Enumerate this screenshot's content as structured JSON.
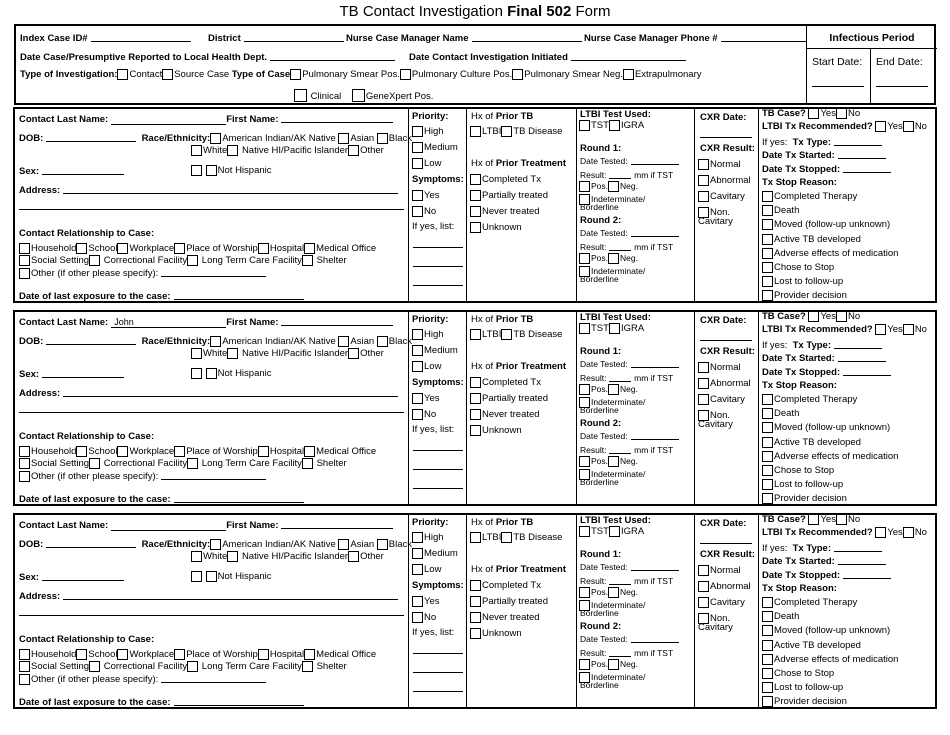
{
  "title": {
    "pre": "TB Contact Investigation ",
    "bold": "Final 502",
    "post": " Form"
  },
  "header": {
    "index_case": "Index Case ID#",
    "district": "District",
    "ncm_name": "Nurse Case Manager Name",
    "ncm_phone": "Nurse Case Manager Phone #",
    "date_reported": "Date Case/Presumptive Reported to Local Health Dept.",
    "date_initiated": "Date Contact Investigation Initiated",
    "type_inv": "Type of Investigation:",
    "contact": "Contact",
    "source": "Source Case",
    "type_case": "Type of Case",
    "smear_pos": "Pulmonary Smear Pos.",
    "culture_pos": "Pulmonary Culture Pos.",
    "smear_neg": "Pulmonary Smear Neg.",
    "extra": "Extrapulmonary",
    "clinical": "Clinical",
    "genexpert": "GeneXpert Pos.",
    "infectious": "Infectious Period",
    "start": "Start Date:",
    "end": "End Date:"
  },
  "labels": {
    "last": "Contact Last Name:",
    "first": "First Name:",
    "dob": "DOB:",
    "race": "Race/Ethnicity:",
    "amind": "American Indian/AK Native",
    "asian": "Asian",
    "black": "Black",
    "white": "White",
    "nhpi": "Native HI/Pacific Islander",
    "other": "Other",
    "sex": "Sex:",
    "hisp": "Hispanic",
    "nothisp": "Not Hispanic",
    "address": "Address:",
    "rel": "Contact Relationship to Case:",
    "household": "Household",
    "school": "School",
    "workplace": "Workplace",
    "worship": "Place of Worship",
    "hospital": "Hospital",
    "medoffice": "Medical Office",
    "social": "Social Setting",
    "correctional": "Correctional Facility",
    "ltc": "Long Term Care Facility",
    "shelter": "Shelter",
    "otherspec": "Other (if other please specify):",
    "lastexp": "Date of last exposure to the case:",
    "priority": "Priority:",
    "high": "High",
    "medium": "Medium",
    "low": "Low",
    "symptoms": "Symptoms:",
    "yes": "Yes",
    "no": "No",
    "ifyes": "If yes, list:",
    "hx": "Hx of ",
    "priortb": "Prior TB",
    "ltbi": "LTBI",
    "tbdisease": "TB Disease",
    "priortx": "Prior Treatment",
    "completed": "Completed Tx",
    "partial": "Partially treated",
    "never": "Never treated",
    "unknown": "Unknown",
    "ltbitest": "LTBI Test Used:",
    "tst": "TST",
    "igra": "IGRA",
    "round1": "Round 1:",
    "round2": "Round 2:",
    "datetested": "Date Tested:",
    "result": "Result:",
    "mm": "mm if TST",
    "pos": "Pos.",
    "neg": "Neg.",
    "indet": "Indeterminate/",
    "border": "Borderline",
    "cxrdate": "CXR Date:",
    "cxrresult": "CXR Result:",
    "normal": "Normal",
    "abnormal": "Abnormal",
    "cavitary": "Cavitary",
    "noncav": "Non.",
    "cav2": "Cavitary",
    "tbcase": "TB Case?",
    "ltbirec": "LTBI Tx Recommended?",
    "ifyes2": "If yes:",
    "txtype": "Tx Type:",
    "txstart": "Date Tx Started:",
    "txstop": "Date Tx Stopped:",
    "stopreason": "Tx Stop Reason:",
    "r1": "Completed Therapy",
    "r2": "Death",
    "r3": "Moved (follow-up unknown)",
    "r4": "Active TB developed",
    "r5": "Adverse effects of medication",
    "r6": "Chose to Stop",
    "r7": "Lost to follow-up",
    "r8": "Provider decision"
  },
  "contacts": [
    {
      "last_name": ""
    },
    {
      "last_name": "John"
    },
    {
      "last_name": ""
    }
  ]
}
